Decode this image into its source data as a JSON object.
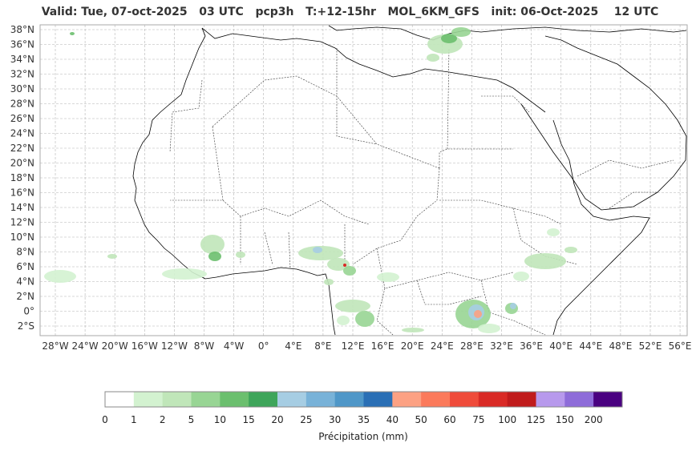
{
  "header": {
    "title": "Valid: Tue, 07-oct-2025   03 UTC   pcp3h   T:+12-15hr   MOL_6KM_GFS   init: 06-Oct-2025    12 UTC"
  },
  "map": {
    "lat_labels": [
      "38°N",
      "36°N",
      "34°N",
      "32°N",
      "30°N",
      "28°N",
      "26°N",
      "24°N",
      "22°N",
      "20°N",
      "18°N",
      "16°N",
      "14°N",
      "12°N",
      "10°N",
      "8°N",
      "6°N",
      "4°N",
      "2°N",
      "0°",
      "2°S"
    ],
    "lon_labels": [
      "28°W",
      "24°W",
      "20°W",
      "16°W",
      "12°W",
      "8°W",
      "4°W",
      "0°",
      "4°E",
      "8°E",
      "12°E",
      "16°E",
      "20°E",
      "24°E",
      "28°E",
      "32°E",
      "36°E",
      "40°E",
      "44°E",
      "48°E",
      "52°E",
      "56°E"
    ],
    "colors": {
      "frame": "#aaaaaa",
      "grid": "#b4b4b4",
      "coast": "#000000",
      "borders": "#333333"
    }
  },
  "colorbar": {
    "title": "Précipitation (mm)",
    "bounds": [
      "0",
      "1",
      "2",
      "5",
      "10",
      "15",
      "20",
      "25",
      "30",
      "35",
      "40",
      "50",
      "60",
      "75",
      "100",
      "125",
      "150",
      "200"
    ],
    "colors": [
      "#ffffff",
      "#d3f2d0",
      "#c0e6b9",
      "#98d594",
      "#6bbf6e",
      "#3ea55a",
      "#a6cde3",
      "#78b2d8",
      "#4f97c8",
      "#2a6fb5",
      "#fca183",
      "#fb7a5b",
      "#ef4b3a",
      "#d92a26",
      "#c01b1c",
      "#b799ec",
      "#8e6cd9",
      "#4a0180"
    ]
  }
}
